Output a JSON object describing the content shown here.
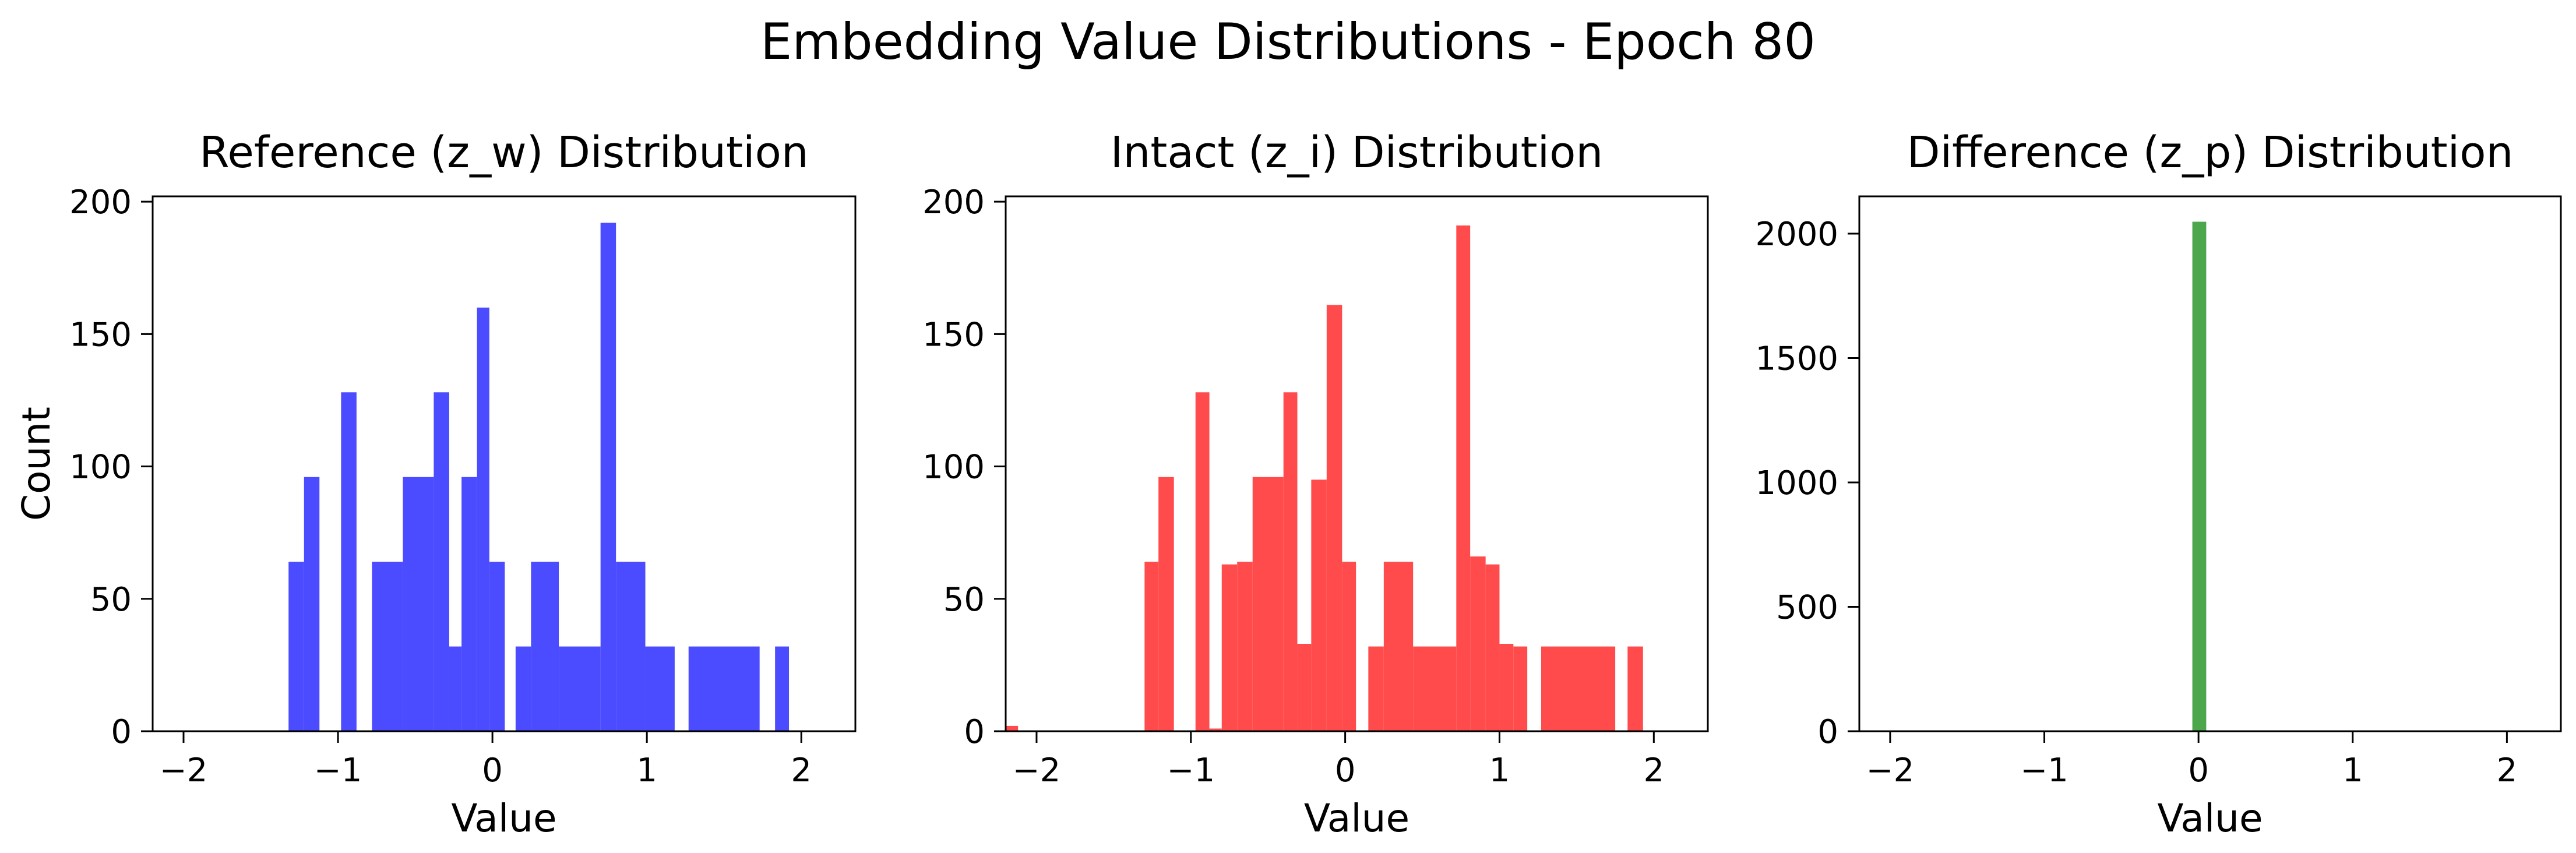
{
  "figure": {
    "title": "Embedding Value Distributions - Epoch 80"
  },
  "chart_data": [
    {
      "type": "bar",
      "title": "Reference (z_w) Distribution",
      "xlabel": "Value",
      "ylabel": "Count",
      "xlim": [
        -2.2,
        2.35
      ],
      "ylim": [
        0,
        202
      ],
      "xticks": [
        -2,
        -1,
        0,
        1,
        2
      ],
      "xtick_labels": [
        "−2",
        "−1",
        "0",
        "1",
        "2"
      ],
      "yticks": [
        0,
        50,
        100,
        150,
        200
      ],
      "ytick_labels": [
        "0",
        "50",
        "100",
        "150",
        "200"
      ],
      "color": "#4b4bff",
      "grid": false,
      "bars": [
        {
          "x0": -1.32,
          "x1": -1.22,
          "count": 64
        },
        {
          "x0": -1.22,
          "x1": -1.12,
          "count": 96
        },
        {
          "x0": -0.98,
          "x1": -0.88,
          "count": 128
        },
        {
          "x0": -0.78,
          "x1": -0.58,
          "count": 64
        },
        {
          "x0": -0.58,
          "x1": -0.38,
          "count": 96
        },
        {
          "x0": -0.38,
          "x1": -0.28,
          "count": 128
        },
        {
          "x0": -0.28,
          "x1": -0.2,
          "count": 32
        },
        {
          "x0": -0.2,
          "x1": -0.1,
          "count": 96
        },
        {
          "x0": -0.1,
          "x1": -0.02,
          "count": 160
        },
        {
          "x0": -0.02,
          "x1": 0.08,
          "count": 64
        },
        {
          "x0": 0.15,
          "x1": 0.25,
          "count": 32
        },
        {
          "x0": 0.25,
          "x1": 0.43,
          "count": 64
        },
        {
          "x0": 0.43,
          "x1": 0.7,
          "count": 32
        },
        {
          "x0": 0.7,
          "x1": 0.8,
          "count": 192
        },
        {
          "x0": 0.8,
          "x1": 0.99,
          "count": 64
        },
        {
          "x0": 0.99,
          "x1": 1.18,
          "count": 32
        },
        {
          "x0": 1.27,
          "x1": 1.73,
          "count": 32
        },
        {
          "x0": 1.83,
          "x1": 1.92,
          "count": 32
        }
      ]
    },
    {
      "type": "bar",
      "title": "Intact (z_i) Distribution",
      "xlabel": "Value",
      "ylabel": "",
      "xlim": [
        -2.2,
        2.35
      ],
      "ylim": [
        0,
        202
      ],
      "xticks": [
        -2,
        -1,
        0,
        1,
        2
      ],
      "xtick_labels": [
        "−2",
        "−1",
        "0",
        "1",
        "2"
      ],
      "yticks": [
        0,
        50,
        100,
        150,
        200
      ],
      "ytick_labels": [
        "0",
        "50",
        "100",
        "150",
        "200"
      ],
      "color": "#ff4b4b",
      "grid": false,
      "bars": [
        {
          "x0": -2.2,
          "x1": -2.12,
          "count": 2
        },
        {
          "x0": -1.3,
          "x1": -1.21,
          "count": 64
        },
        {
          "x0": -1.21,
          "x1": -1.11,
          "count": 96
        },
        {
          "x0": -0.97,
          "x1": -0.88,
          "count": 128
        },
        {
          "x0": -0.88,
          "x1": -0.8,
          "count": 1
        },
        {
          "x0": -0.8,
          "x1": -0.7,
          "count": 63
        },
        {
          "x0": -0.7,
          "x1": -0.6,
          "count": 64
        },
        {
          "x0": -0.6,
          "x1": -0.4,
          "count": 96
        },
        {
          "x0": -0.4,
          "x1": -0.31,
          "count": 128
        },
        {
          "x0": -0.31,
          "x1": -0.22,
          "count": 33
        },
        {
          "x0": -0.22,
          "x1": -0.12,
          "count": 95
        },
        {
          "x0": -0.12,
          "x1": -0.02,
          "count": 161
        },
        {
          "x0": -0.02,
          "x1": 0.07,
          "count": 64
        },
        {
          "x0": 0.15,
          "x1": 0.25,
          "count": 32
        },
        {
          "x0": 0.25,
          "x1": 0.44,
          "count": 64
        },
        {
          "x0": 0.44,
          "x1": 0.72,
          "count": 32
        },
        {
          "x0": 0.72,
          "x1": 0.81,
          "count": 191
        },
        {
          "x0": 0.81,
          "x1": 0.91,
          "count": 66
        },
        {
          "x0": 0.91,
          "x1": 1.0,
          "count": 63
        },
        {
          "x0": 1.0,
          "x1": 1.09,
          "count": 33
        },
        {
          "x0": 1.09,
          "x1": 1.18,
          "count": 32
        },
        {
          "x0": 1.27,
          "x1": 1.75,
          "count": 32
        },
        {
          "x0": 1.83,
          "x1": 1.93,
          "count": 32
        }
      ]
    },
    {
      "type": "bar",
      "title": "Difference (z_p) Distribution",
      "xlabel": "Value",
      "ylabel": "",
      "xlim": [
        -2.2,
        2.35
      ],
      "ylim": [
        0,
        2150
      ],
      "xticks": [
        -2,
        -1,
        0,
        1,
        2
      ],
      "xtick_labels": [
        "−2",
        "−1",
        "0",
        "1",
        "2"
      ],
      "yticks": [
        0,
        500,
        1000,
        1500,
        2000
      ],
      "ytick_labels": [
        "0",
        "500",
        "1000",
        "1500",
        "2000"
      ],
      "color": "#4ca64c",
      "grid": false,
      "bars": [
        {
          "x0": -0.04,
          "x1": 0.05,
          "count": 2048
        }
      ]
    }
  ]
}
